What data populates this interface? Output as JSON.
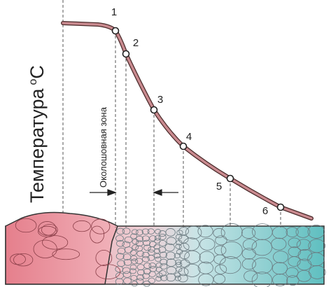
{
  "axis_label": {
    "text": "Температура",
    "superscript": "o",
    "unit": "C"
  },
  "zone_label": "Околошовная зона",
  "points": [
    {
      "label": "1"
    },
    {
      "label": "2"
    },
    {
      "label": "3"
    },
    {
      "label": "4"
    },
    {
      "label": "5"
    },
    {
      "label": "6"
    }
  ]
}
